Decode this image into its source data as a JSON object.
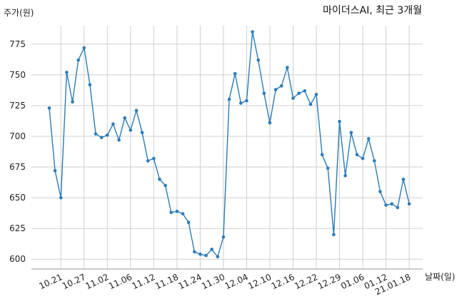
{
  "chart_data": {
    "type": "line",
    "title": "마이더스AI, 최근 3개월",
    "xlabel": "날짜(일)",
    "ylabel": "주가(원)",
    "ylim": [
      592,
      790
    ],
    "yticks": [
      600,
      625,
      650,
      675,
      700,
      725,
      750,
      775
    ],
    "xtick_labels": [
      "10.21",
      "10.27",
      "11.02",
      "11.06",
      "11.12",
      "11.18",
      "11.24",
      "11.30",
      "12.04",
      "12.10",
      "12.16",
      "12.22",
      "12.29",
      "01.06",
      "01.12",
      "21.01.18"
    ],
    "xtick_index": [
      2,
      6,
      10,
      14,
      18,
      22,
      26,
      30,
      34,
      38,
      42,
      46,
      50,
      54,
      58,
      62
    ],
    "grid": true,
    "series_color": "#2b7bb9",
    "series": [
      {
        "values": [
          723,
          672,
          650,
          752,
          728,
          762,
          772,
          742,
          702,
          699,
          701,
          710,
          697,
          715,
          705,
          721,
          703,
          680,
          682,
          665,
          660,
          638,
          639,
          637,
          630,
          606,
          604,
          603,
          608,
          602,
          618,
          730,
          751,
          727,
          729,
          785,
          762,
          735,
          711,
          738,
          741,
          756,
          731,
          735,
          737,
          726,
          734,
          685,
          674,
          620,
          712,
          668,
          703,
          685,
          682,
          698,
          680,
          655,
          644,
          645,
          642,
          665,
          645
        ]
      }
    ]
  }
}
